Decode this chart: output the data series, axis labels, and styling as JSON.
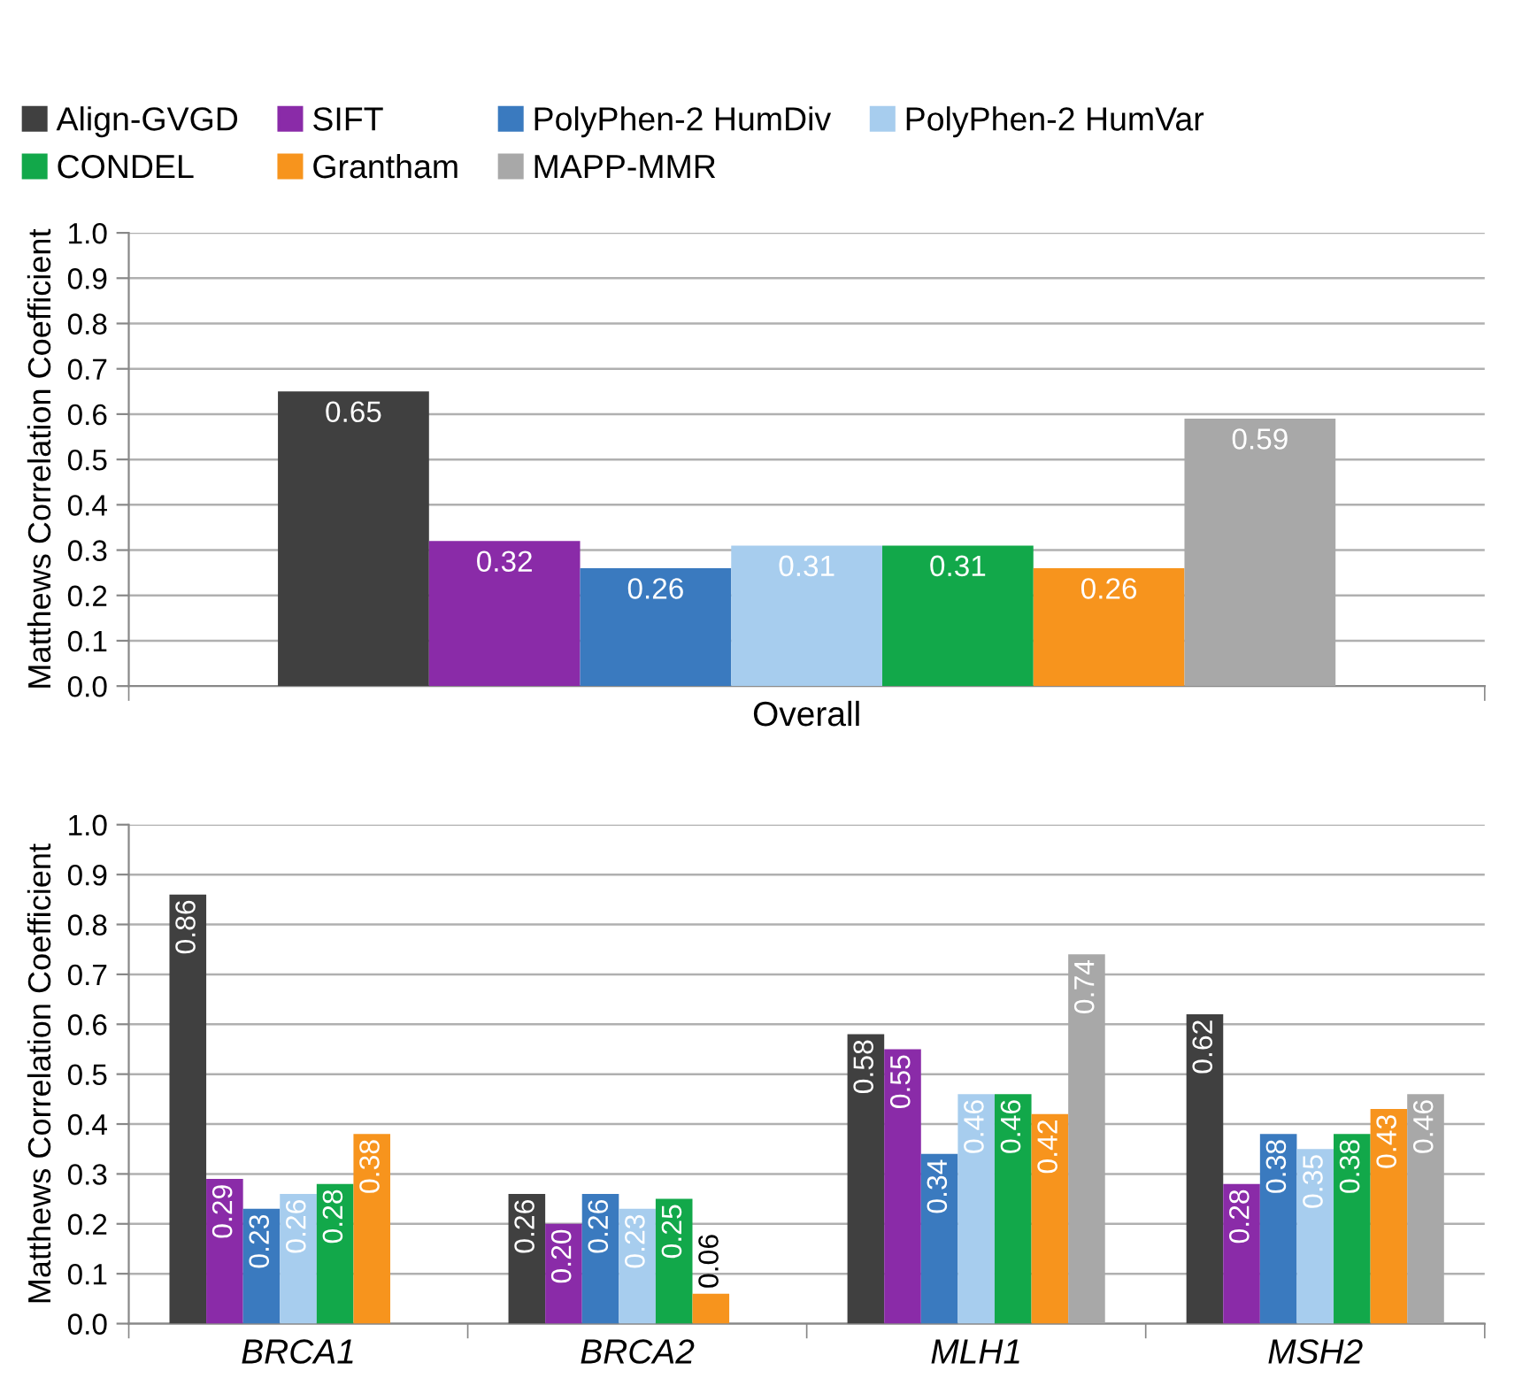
{
  "chart_data": [
    {
      "type": "bar",
      "categories": [
        "Overall"
      ],
      "ylabel": "Matthews Correlation Coefficient",
      "ylim": [
        0,
        1
      ],
      "yticks": [
        {
          "value": 0,
          "label": "0.0"
        },
        {
          "value": 0.1,
          "label": "0.1"
        },
        {
          "value": 0.2,
          "label": "0.2"
        },
        {
          "value": 0.3,
          "label": "0.3"
        },
        {
          "value": 0.4,
          "label": "0.4"
        },
        {
          "value": 0.5,
          "label": "0.5"
        },
        {
          "value": 0.6,
          "label": "0.6"
        },
        {
          "value": 0.7,
          "label": "0.7"
        },
        {
          "value": 0.8,
          "label": "0.8"
        },
        {
          "value": 0.9,
          "label": "0.9"
        },
        {
          "value": 1,
          "label": "1.0"
        }
      ],
      "grid": "y",
      "legend": "top",
      "series": [
        {
          "name": "Align-GVGD",
          "color": "#404040",
          "values": [
            0.65
          ],
          "value_labels": [
            "0.65"
          ]
        },
        {
          "name": "SIFT",
          "color": "#8a2ba8",
          "values": [
            0.32
          ],
          "value_labels": [
            "0.32"
          ]
        },
        {
          "name": "PolyPhen-2 HumDiv",
          "color": "#3a7abf",
          "values": [
            0.26
          ],
          "value_labels": [
            "0.26"
          ]
        },
        {
          "name": "PolyPhen-2 HumVar",
          "color": "#a7cdee",
          "values": [
            0.31
          ],
          "value_labels": [
            "0.31"
          ]
        },
        {
          "name": "CONDEL",
          "color": "#12a84a",
          "values": [
            0.31
          ],
          "value_labels": [
            "0.31"
          ]
        },
        {
          "name": "Grantham",
          "color": "#f7941d",
          "values": [
            0.26
          ],
          "value_labels": [
            "0.26"
          ]
        },
        {
          "name": "MAPP-MMR",
          "color": "#a8a8a8",
          "values": [
            0.59
          ],
          "value_labels": [
            "0.59"
          ]
        }
      ]
    },
    {
      "type": "bar",
      "categories": [
        "BRCA1",
        "BRCA2",
        "MLH1",
        "MSH2"
      ],
      "ylabel": "Matthews Correlation Coefficient",
      "ylim": [
        0,
        1
      ],
      "yticks": [
        {
          "value": 0,
          "label": "0.0"
        },
        {
          "value": 0.1,
          "label": "0.1"
        },
        {
          "value": 0.2,
          "label": "0.2"
        },
        {
          "value": 0.3,
          "label": "0.3"
        },
        {
          "value": 0.4,
          "label": "0.4"
        },
        {
          "value": 0.5,
          "label": "0.5"
        },
        {
          "value": 0.6,
          "label": "0.6"
        },
        {
          "value": 0.7,
          "label": "0.7"
        },
        {
          "value": 0.8,
          "label": "0.8"
        },
        {
          "value": 0.9,
          "label": "0.9"
        },
        {
          "value": 1,
          "label": "1.0"
        }
      ],
      "grid": "y",
      "series": [
        {
          "color": "#404040",
          "values": [
            0.86,
            0.26,
            0.58,
            0.62
          ],
          "value_labels": [
            "0.86",
            "0.26",
            "0.58",
            "0.62"
          ]
        },
        {
          "color": "#8a2ba8",
          "values": [
            0.29,
            0.2,
            0.55,
            0.28
          ],
          "value_labels": [
            "0.29",
            "0.20",
            "0.55",
            "0.28"
          ]
        },
        {
          "color": "#3a7abf",
          "values": [
            0.23,
            0.26,
            0.34,
            0.38
          ],
          "value_labels": [
            "0.23",
            "0.26",
            "0.34",
            "0.38"
          ]
        },
        {
          "color": "#a7cdee",
          "values": [
            0.26,
            0.23,
            0.46,
            0.35
          ],
          "value_labels": [
            "0.26",
            "0.23",
            "0.46",
            "0.35"
          ]
        },
        {
          "color": "#12a84a",
          "values": [
            0.28,
            0.25,
            0.46,
            0.38
          ],
          "value_labels": [
            "0.28",
            "0.25",
            "0.46",
            "0.38"
          ]
        },
        {
          "color": "#f7941d",
          "values": [
            0.38,
            0.06,
            0.42,
            0.43
          ],
          "value_labels": [
            "0.38",
            "0.06",
            "0.42",
            "0.43"
          ]
        },
        {
          "color": "#a8a8a8",
          "values": [
            null,
            null,
            0.74,
            0.46
          ],
          "value_labels": [
            null,
            null,
            "0.74",
            "0.46"
          ]
        }
      ]
    }
  ]
}
